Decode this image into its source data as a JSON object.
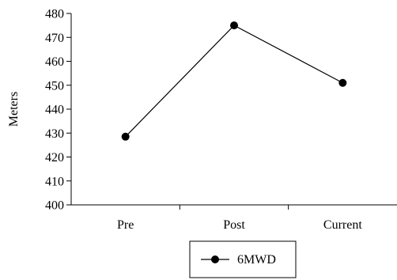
{
  "chart_data": {
    "type": "line",
    "categories": [
      "Pre",
      "Post",
      "Current"
    ],
    "series": [
      {
        "name": "6MWD",
        "values": [
          428.5,
          475,
          451
        ]
      }
    ],
    "xlabel": "",
    "ylabel": "Meters",
    "ylim": [
      400,
      480
    ],
    "yticks": [
      400,
      410,
      420,
      430,
      440,
      450,
      460,
      470,
      480
    ],
    "grid": false,
    "legend_position": "bottom-center",
    "colors": {
      "line": "#000000",
      "marker": "#000000"
    }
  }
}
